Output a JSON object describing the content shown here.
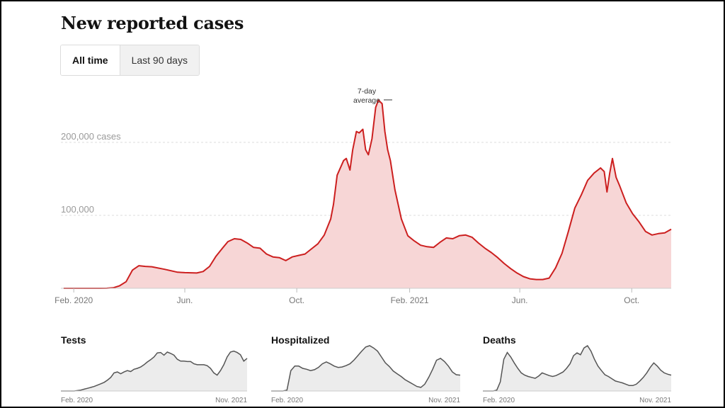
{
  "title": "New reported cases",
  "tabs": [
    {
      "label": "All time",
      "active": true
    },
    {
      "label": "Last 90 days",
      "active": false
    }
  ],
  "colors": {
    "line": "#cc1f1f",
    "fill": "#f7d6d6",
    "mini_line": "#555555",
    "mini_fill": "#ececec",
    "grid": "#dddddd"
  },
  "chart_data": [
    {
      "type": "area",
      "title": "New reported cases",
      "series": [
        {
          "name": "7-day average",
          "x": [
            "2020-01-21",
            "2020-02-01",
            "2020-02-15",
            "2020-03-01",
            "2020-03-08",
            "2020-03-15",
            "2020-03-22",
            "2020-03-29",
            "2020-04-05",
            "2020-04-12",
            "2020-04-19",
            "2020-04-26",
            "2020-05-10",
            "2020-05-24",
            "2020-06-01",
            "2020-06-14",
            "2020-06-21",
            "2020-06-28",
            "2020-07-05",
            "2020-07-12",
            "2020-07-18",
            "2020-07-25",
            "2020-08-01",
            "2020-08-08",
            "2020-08-15",
            "2020-08-22",
            "2020-08-29",
            "2020-09-05",
            "2020-09-12",
            "2020-09-19",
            "2020-09-26",
            "2020-10-03",
            "2020-10-10",
            "2020-10-17",
            "2020-10-24",
            "2020-10-31",
            "2020-11-07",
            "2020-11-10",
            "2020-11-14",
            "2020-11-21",
            "2020-11-24",
            "2020-11-28",
            "2020-12-01",
            "2020-12-05",
            "2020-12-08",
            "2020-12-12",
            "2020-12-15",
            "2020-12-18",
            "2020-12-22",
            "2020-12-26",
            "2020-12-29",
            "2021-01-02",
            "2021-01-05",
            "2021-01-08",
            "2021-01-11",
            "2021-01-16",
            "2021-01-23",
            "2021-01-30",
            "2021-02-06",
            "2021-02-13",
            "2021-02-20",
            "2021-02-27",
            "2021-03-06",
            "2021-03-13",
            "2021-03-20",
            "2021-03-27",
            "2021-04-03",
            "2021-04-10",
            "2021-04-17",
            "2021-04-24",
            "2021-05-01",
            "2021-05-08",
            "2021-05-15",
            "2021-05-22",
            "2021-05-29",
            "2021-06-05",
            "2021-06-12",
            "2021-06-19",
            "2021-06-26",
            "2021-07-03",
            "2021-07-10",
            "2021-07-17",
            "2021-07-24",
            "2021-07-31",
            "2021-08-07",
            "2021-08-14",
            "2021-08-21",
            "2021-08-28",
            "2021-09-01",
            "2021-09-04",
            "2021-09-07",
            "2021-09-10",
            "2021-09-14",
            "2021-09-18",
            "2021-09-25",
            "2021-10-02",
            "2021-10-09",
            "2021-10-16",
            "2021-10-23",
            "2021-10-30",
            "2021-11-06",
            "2021-11-13"
          ],
          "y": [
            0,
            0,
            0,
            0,
            50,
            700,
            3500,
            9000,
            25000,
            31000,
            30000,
            29500,
            26000,
            22000,
            21500,
            21000,
            23000,
            30000,
            44000,
            55000,
            64000,
            68000,
            67000,
            62000,
            56000,
            55000,
            47000,
            43000,
            42000,
            38000,
            43000,
            45000,
            47000,
            54000,
            61000,
            73000,
            95000,
            115000,
            155000,
            175000,
            178000,
            162000,
            190000,
            215000,
            213000,
            218000,
            190000,
            183000,
            205000,
            248000,
            258000,
            253000,
            215000,
            190000,
            175000,
            135000,
            95000,
            72000,
            65000,
            59000,
            57000,
            56000,
            63000,
            69000,
            68000,
            72000,
            73000,
            70000,
            62000,
            55000,
            49000,
            42000,
            34000,
            27000,
            21000,
            16000,
            13000,
            12000,
            12000,
            14000,
            28000,
            48000,
            78000,
            110000,
            128000,
            148000,
            158000,
            165000,
            160000,
            132000,
            158000,
            178000,
            152000,
            140000,
            117000,
            102000,
            91000,
            78000,
            73000,
            75000,
            76000,
            81000
          ]
        }
      ],
      "ylim": [
        0,
        260000
      ],
      "yticks": [
        "200,000 cases",
        "100,000"
      ],
      "xticks": [
        "Feb. 2020",
        "Jun.",
        "Oct.",
        "Feb. 2021",
        "Jun.",
        "Oct."
      ],
      "annotation": [
        "7-day",
        "average"
      ],
      "grid": true
    },
    {
      "type": "area",
      "title": "Tests",
      "series": [
        {
          "values": [
            0,
            0,
            0,
            0,
            0,
            1,
            2,
            4,
            6,
            8,
            10,
            13,
            16,
            19,
            24,
            30,
            40,
            42,
            38,
            42,
            45,
            43,
            48,
            50,
            53,
            58,
            64,
            69,
            75,
            84,
            85,
            79,
            86,
            83,
            79,
            70,
            66,
            66,
            65,
            65,
            60,
            58,
            58,
            58,
            56,
            50,
            40,
            35,
            45,
            58,
            75,
            86,
            88,
            85,
            80,
            66,
            72
          ]
        }
      ],
      "xticks": [
        "Feb. 2020",
        "Nov. 2021"
      ]
    },
    {
      "type": "area",
      "title": "Hospitalized",
      "series": [
        {
          "values": [
            0,
            0,
            0,
            0,
            2,
            45,
            55,
            55,
            50,
            48,
            45,
            47,
            52,
            60,
            64,
            60,
            55,
            52,
            53,
            56,
            60,
            68,
            78,
            88,
            97,
            100,
            95,
            88,
            75,
            62,
            54,
            44,
            38,
            32,
            25,
            20,
            15,
            10,
            8,
            15,
            30,
            48,
            68,
            72,
            65,
            55,
            42,
            36,
            35
          ]
        }
      ],
      "xticks": [
        "Feb. 2020",
        "Nov. 2021"
      ]
    },
    {
      "type": "area",
      "title": "Deaths",
      "series": [
        {
          "values": [
            0,
            0,
            0,
            0,
            2,
            20,
            70,
            85,
            75,
            62,
            50,
            40,
            35,
            32,
            30,
            28,
            33,
            40,
            37,
            34,
            32,
            34,
            38,
            42,
            50,
            60,
            78,
            84,
            80,
            95,
            100,
            88,
            70,
            55,
            45,
            36,
            32,
            27,
            22,
            20,
            18,
            15,
            12,
            12,
            15,
            22,
            30,
            40,
            52,
            62,
            55,
            46,
            40,
            37,
            35
          ]
        }
      ],
      "xticks": [
        "Feb. 2020",
        "Nov. 2021"
      ]
    }
  ]
}
